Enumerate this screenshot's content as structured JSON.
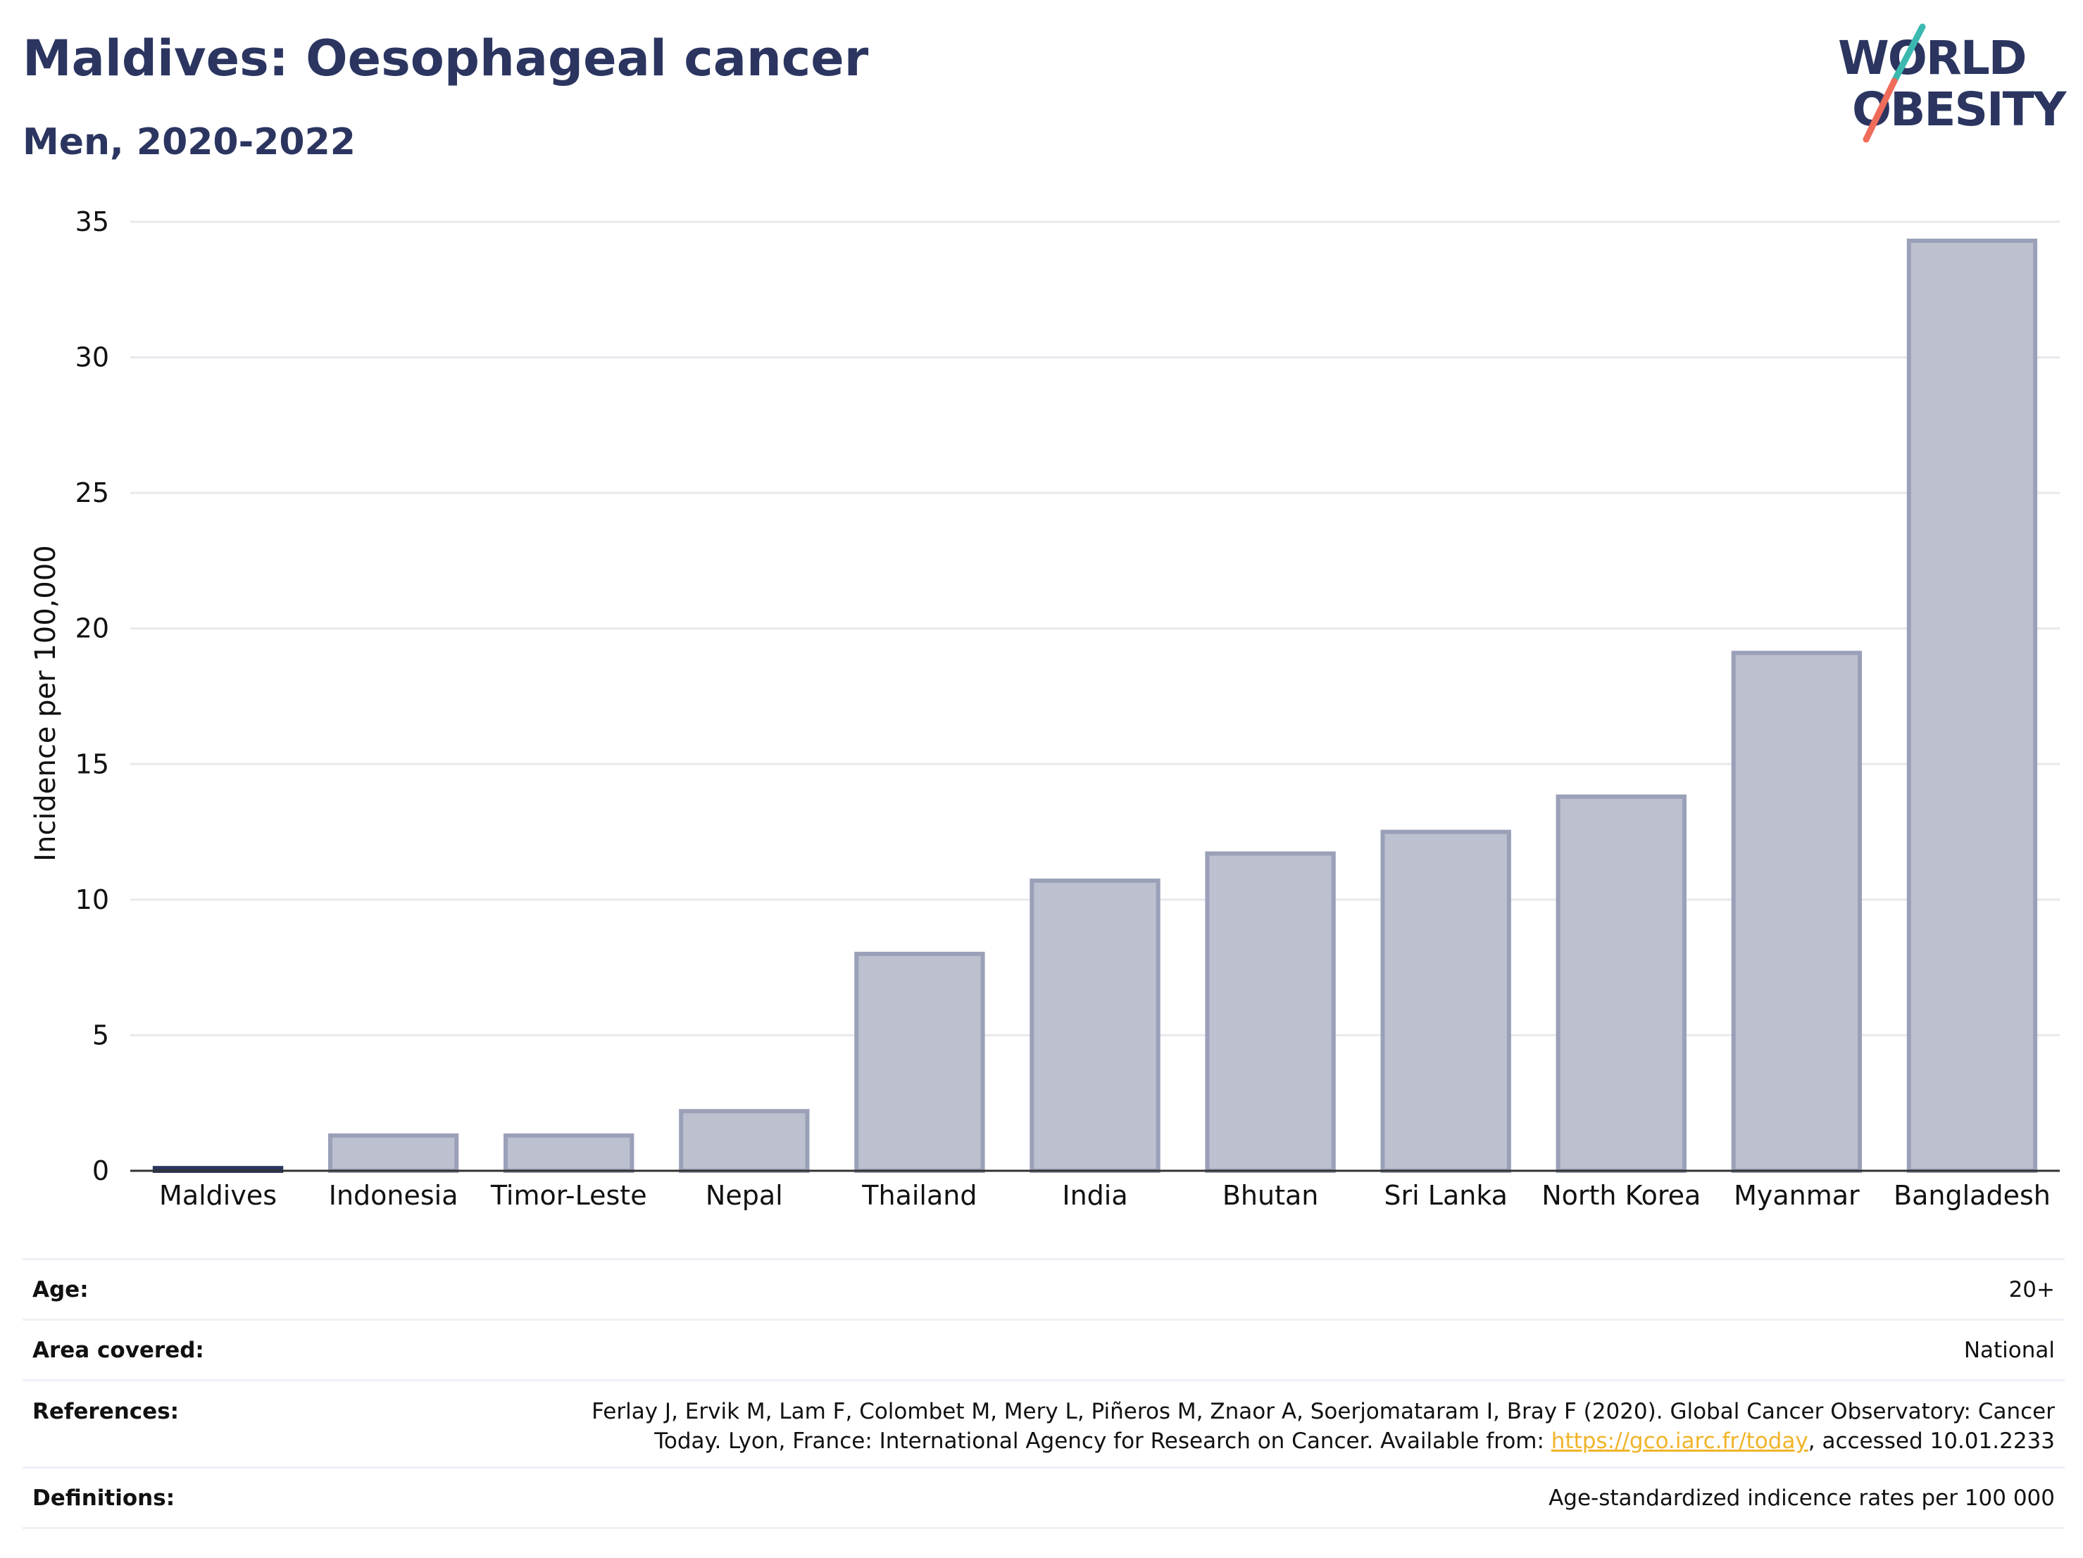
{
  "header": {
    "title": "Maldives: Oesophageal cancer",
    "subtitle": "Men, 2020-2022",
    "logo_line1": "WORLD",
    "logo_line2": "OBESITY"
  },
  "colors": {
    "highlight_bar": "#2b3560",
    "bar_fill": "#bcc0cf",
    "bar_stroke": "#9aa0b8",
    "grid": "#e8e8ee",
    "link": "#f0b429",
    "logo_teal": "#3bb9b0",
    "logo_coral": "#ef6b5a"
  },
  "chart_data": {
    "type": "bar",
    "categories": [
      "Maldives",
      "Indonesia",
      "Timor-Leste",
      "Nepal",
      "Thailand",
      "India",
      "Bhutan",
      "Sri Lanka",
      "North Korea",
      "Myanmar",
      "Bangladesh"
    ],
    "values": [
      0.1,
      1.3,
      1.3,
      2.2,
      8.0,
      10.7,
      11.7,
      12.5,
      13.8,
      19.1,
      34.3
    ],
    "highlight": "Maldives",
    "xlabel": "",
    "ylabel": "Incidence per 100,000",
    "ylim": [
      0,
      35
    ],
    "yticks": [
      0,
      5,
      10,
      15,
      20,
      25,
      30,
      35
    ],
    "grid": true,
    "legend": "none"
  },
  "info": {
    "age_label": "Age:",
    "age_value": "20+",
    "area_label": "Area covered:",
    "area_value": "National",
    "references_label": "References:",
    "references_text_before": "Ferlay J, Ervik M, Lam F, Colombet M, Mery L, Piñeros M, Znaor A, Soerjomataram I, Bray F (2020). Global Cancer Observatory: Cancer Today. Lyon, France: International Agency for Research on Cancer. Available from: ",
    "references_link": "https://gco.iarc.fr/today",
    "references_text_after": ", accessed 10.01.2233",
    "definitions_label": "Definitions:",
    "definitions_value": "Age-standardized indicence rates per 100 000"
  }
}
